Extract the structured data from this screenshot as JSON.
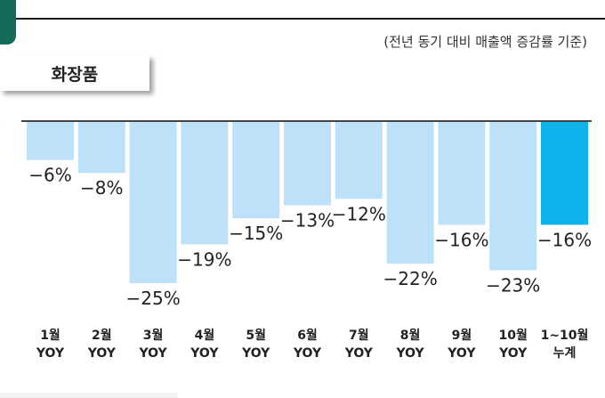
{
  "header": {
    "basis_note": "(전년 동기 대비 매출액 증감률 기준)",
    "category": "화장품"
  },
  "colors": {
    "bar_light": "#bde1f8",
    "bar_highlight": "#0cb3ec",
    "axis": "#444444",
    "text": "#222222",
    "accent_tab": "#146b5b"
  },
  "chart_data": {
    "type": "bar",
    "categories": [
      "1월\nYOY",
      "2월\nYOY",
      "3월\nYOY",
      "4월\nYOY",
      "5월\nYOY",
      "6월\nYOY",
      "7월\nYOY",
      "8월\nYOY",
      "9월\nYOY",
      "10월\nYOY",
      "1~10월\n누계"
    ],
    "values": [
      -6,
      -8,
      -25,
      -19,
      -15,
      -13,
      -12,
      -22,
      -16,
      -23,
      -16
    ],
    "data_labels": [
      "−6%",
      "−8%",
      "−25%",
      "−19%",
      "−15%",
      "−13%",
      "−12%",
      "−22%",
      "−16%",
      "−23%",
      "−16%"
    ],
    "highlight_index": 10,
    "unit": "%",
    "ylim": [
      -25,
      0
    ],
    "grid": false,
    "legend": "none"
  }
}
